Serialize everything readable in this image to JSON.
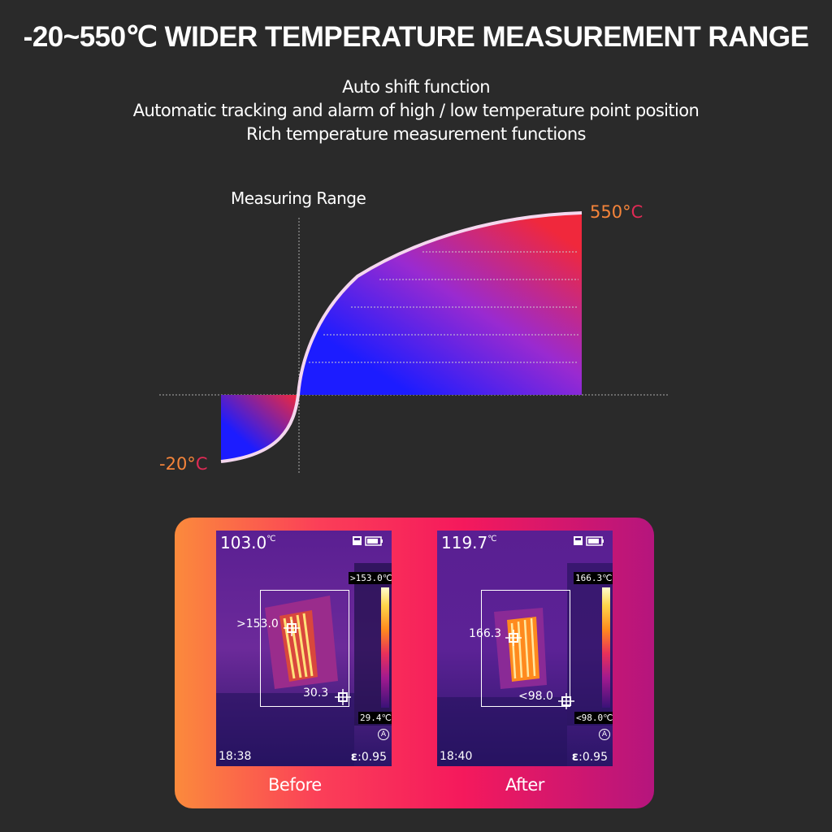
{
  "title": "-20~550℃ WIDER TEMPERATURE MEASUREMENT RANGE",
  "subtitles": [
    "Auto shift function",
    "Automatic tracking and alarm of high / low temperature point position",
    "Rich temperature measurement functions"
  ],
  "chart": {
    "axis_label": "Measuring Range",
    "max_label": "550°",
    "max_unit": "C",
    "min_label": "-20°",
    "min_unit": "C",
    "range_min": -20,
    "range_max": 550,
    "colors": {
      "low": "#1c1cff",
      "high": "#f0283c",
      "curve": "#f4d7ee",
      "label": "#f5843a"
    }
  },
  "before": {
    "caption": "Before",
    "center_temp": "103.0",
    "center_unit": "℃",
    "scale_max": ">153.0℃",
    "scale_min": "29.4℃",
    "hot_spot": ">153.0",
    "cold_spot": "30.3",
    "auto_badge": "A",
    "time": "18:38",
    "emissivity_symbol": "ε",
    "emissivity": ":0.95"
  },
  "after": {
    "caption": "After",
    "center_temp": "119.7",
    "center_unit": "℃",
    "scale_max": "166.3℃",
    "scale_min": "<98.0℃",
    "hot_spot": "166.3",
    "cold_spot": "<98.0",
    "auto_badge": "A",
    "time": "18:40",
    "emissivity_symbol": "ε",
    "emissivity": ":0.95"
  }
}
